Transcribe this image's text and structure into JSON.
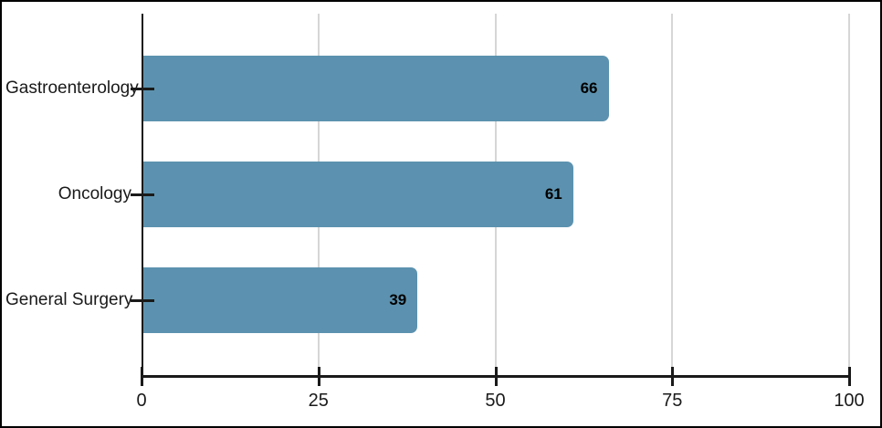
{
  "chart_data": {
    "type": "bar",
    "orientation": "horizontal",
    "title": "",
    "categories": [
      "Gastroenterology",
      "Oncology",
      "General Surgery"
    ],
    "values": [
      66,
      61,
      39
    ],
    "value_labels": [
      "66",
      "61",
      "39"
    ],
    "x_ticks": [
      "0",
      "25",
      "50",
      "75",
      "100"
    ],
    "x_tick_values": [
      0,
      25,
      50,
      75,
      100
    ],
    "xlim": [
      0,
      100
    ],
    "grid": "vertical-at-ticks",
    "legend": "none",
    "value_label_position": "inside-end",
    "bar_color": "#5c92af",
    "grid_color": "#d6d6d6",
    "axis_color": "#1a1a1a",
    "text_color": "#1a1a1a",
    "border_color": "#000000"
  }
}
